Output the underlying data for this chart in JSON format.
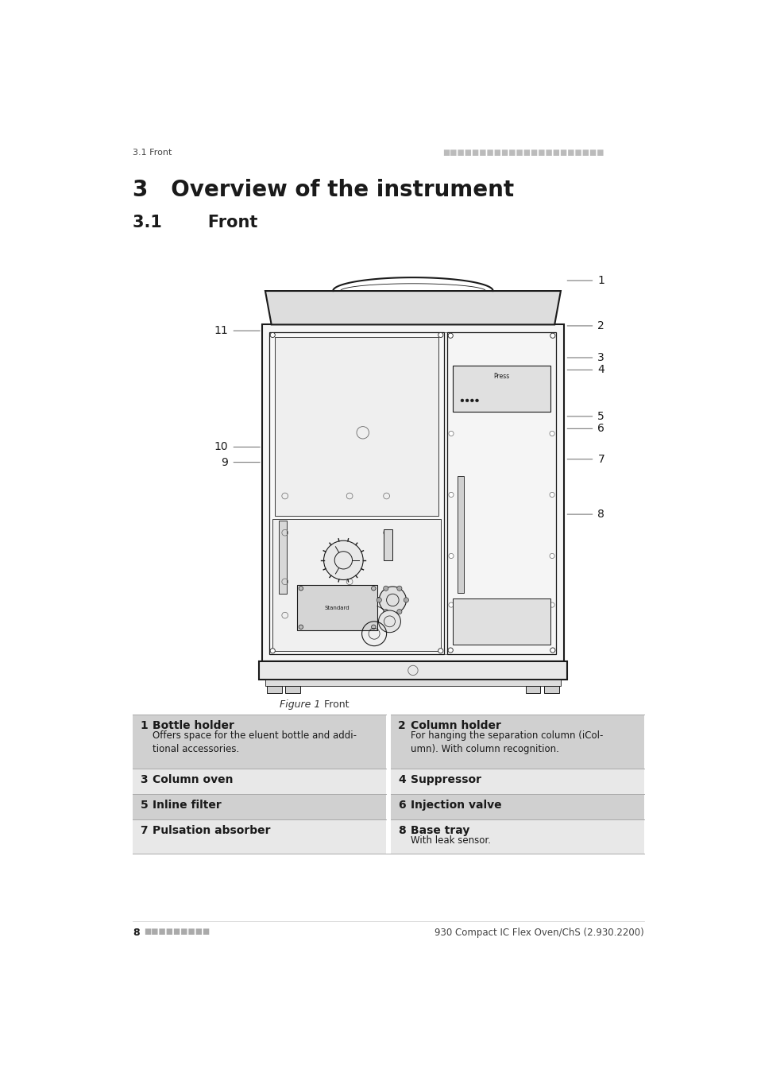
{
  "page_header_left": "3.1 Front",
  "page_header_right": "■■■■■■■■■■■■■■■■■■■■■■",
  "chapter_title": "3   Overview of the instrument",
  "section_title": "3.1        Front",
  "figure_caption_italic": "Figure 1",
  "figure_caption_normal": "    Front",
  "page_footer_left_num": "8",
  "page_footer_left_squares": "■■■■■■■■■",
  "page_footer_right": "930 Compact IC Flex Oven/ChS (2.930.2200)",
  "bg_color": "#ffffff",
  "text_color": "#1a1a1a",
  "gray_color": "#aaaaaa",
  "table_gray_dark": "#d0d0d0",
  "table_gray_light": "#e8e8e8",
  "table_items": [
    {
      "num": "1",
      "title": "Bottle holder",
      "desc": "Offers space for the eluent bottle and addi-\ntional accessories.",
      "col": 0
    },
    {
      "num": "2",
      "title": "Column holder",
      "desc": "For hanging the separation column (iCol-\numn). With column recognition.",
      "col": 1
    },
    {
      "num": "3",
      "title": "Column oven",
      "desc": "",
      "col": 0
    },
    {
      "num": "4",
      "title": "Suppressor",
      "desc": "",
      "col": 1
    },
    {
      "num": "5",
      "title": "Inline filter",
      "desc": "",
      "col": 0
    },
    {
      "num": "6",
      "title": "Injection valve",
      "desc": "",
      "col": 1
    },
    {
      "num": "7",
      "title": "Pulsation absorber",
      "desc": "",
      "col": 0
    },
    {
      "num": "8",
      "title": "Base tray",
      "desc": "With leak sensor.",
      "col": 1
    }
  ],
  "labels_right": [
    [
      "1",
      248
    ],
    [
      "2",
      322
    ],
    [
      "3",
      374
    ],
    [
      "4",
      394
    ],
    [
      "5",
      470
    ],
    [
      "6",
      490
    ],
    [
      "7",
      540
    ],
    [
      "8",
      630
    ]
  ],
  "labels_left": [
    [
      "11",
      330
    ],
    [
      "10",
      520
    ],
    [
      "9",
      545
    ]
  ]
}
